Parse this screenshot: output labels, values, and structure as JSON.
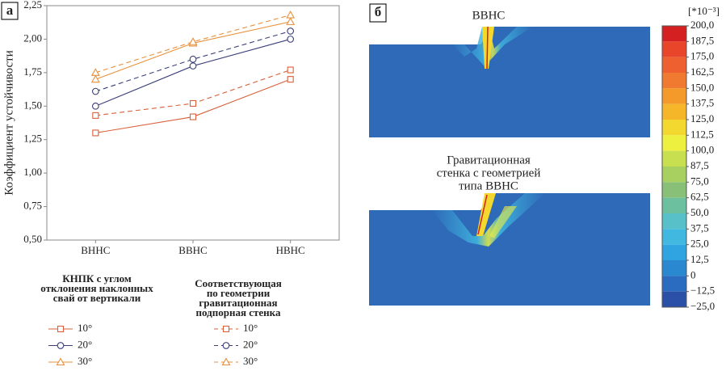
{
  "chart_data": [
    {
      "type": "line",
      "panel_label": "а",
      "y_label": "Коэффициент устойчивости",
      "categories": [
        "ВННС",
        "ВВНС",
        "НВНС"
      ],
      "ylim": [
        0.5,
        2.25
      ],
      "yticks": [
        {
          "value": 0.5,
          "label": "0,50"
        },
        {
          "value": 0.75,
          "label": "0,75"
        },
        {
          "value": 1.0,
          "label": "1,00"
        },
        {
          "value": 1.25,
          "label": "1,25"
        },
        {
          "value": 1.5,
          "label": "1,50"
        },
        {
          "value": 1.75,
          "label": "1,75"
        },
        {
          "value": 2.0,
          "label": "2,00"
        },
        {
          "value": 2.25,
          "label": "2,25"
        }
      ],
      "legend_titles": [
        [
          "КНПК с углом",
          "отклонения наклонных",
          "свай от вертикали"
        ],
        [
          "Соответствующая",
          "по геометрии",
          "гравитационная",
          "подпорная стенка"
        ]
      ],
      "series": [
        {
          "name": "10°",
          "color": "#d9603a",
          "marker": "square",
          "dashed": false,
          "values": [
            1.3,
            1.42,
            1.7
          ]
        },
        {
          "name": "20°",
          "color": "#3a3f78",
          "marker": "circle",
          "dashed": false,
          "values": [
            1.5,
            1.8,
            2.0
          ]
        },
        {
          "name": "30°",
          "color": "#e8903a",
          "marker": "triangle",
          "dashed": false,
          "values": [
            1.7,
            1.97,
            2.13
          ]
        },
        {
          "name": "10°",
          "color": "#d9603a",
          "marker": "square",
          "dashed": true,
          "values": [
            1.43,
            1.52,
            1.77
          ]
        },
        {
          "name": "20°",
          "color": "#3a3f78",
          "marker": "circle",
          "dashed": true,
          "values": [
            1.61,
            1.85,
            2.06
          ]
        },
        {
          "name": "30°",
          "color": "#e8903a",
          "marker": "triangle",
          "dashed": true,
          "values": [
            1.75,
            1.98,
            2.18
          ]
        }
      ]
    },
    {
      "type": "colorbar",
      "panel_label": "б",
      "titles": [
        [
          "ВВНС"
        ],
        [
          "Гравитационная",
          "стенка с геометрией",
          "типа ВВНС"
        ]
      ],
      "unit": "[*10⁻³]",
      "ticks": [
        {
          "value": 200,
          "label": "200,0"
        },
        {
          "value": 187.5,
          "label": "187,5"
        },
        {
          "value": 175,
          "label": "175,0"
        },
        {
          "value": 162.5,
          "label": "162,5"
        },
        {
          "value": 150,
          "label": "150,0"
        },
        {
          "value": 137.5,
          "label": "137,5"
        },
        {
          "value": 125,
          "label": "125,0"
        },
        {
          "value": 112.5,
          "label": "112,5"
        },
        {
          "value": 100,
          "label": "100,0"
        },
        {
          "value": 87.5,
          "label": "87,5"
        },
        {
          "value": 75,
          "label": "75,0"
        },
        {
          "value": 62.5,
          "label": "62,5"
        },
        {
          "value": 50,
          "label": "50,0"
        },
        {
          "value": 37.5,
          "label": "37,5"
        },
        {
          "value": 25,
          "label": "25,0"
        },
        {
          "value": 12.5,
          "label": "12,5"
        },
        {
          "value": 0,
          "label": "0"
        },
        {
          "value": -12.5,
          "label": "−12,5"
        },
        {
          "value": -25,
          "label": "−25,0"
        }
      ],
      "colors": [
        "#d42020",
        "#e8452a",
        "#ee6030",
        "#f07a30",
        "#f39a2a",
        "#f5b62a",
        "#f3d830",
        "#eef040",
        "#c8e050",
        "#a8d060",
        "#88c078",
        "#6cc0a0",
        "#58c0c8",
        "#40b8e0",
        "#30a4e0",
        "#2a88d0",
        "#2c6cc0",
        "#2a50a8"
      ]
    }
  ]
}
